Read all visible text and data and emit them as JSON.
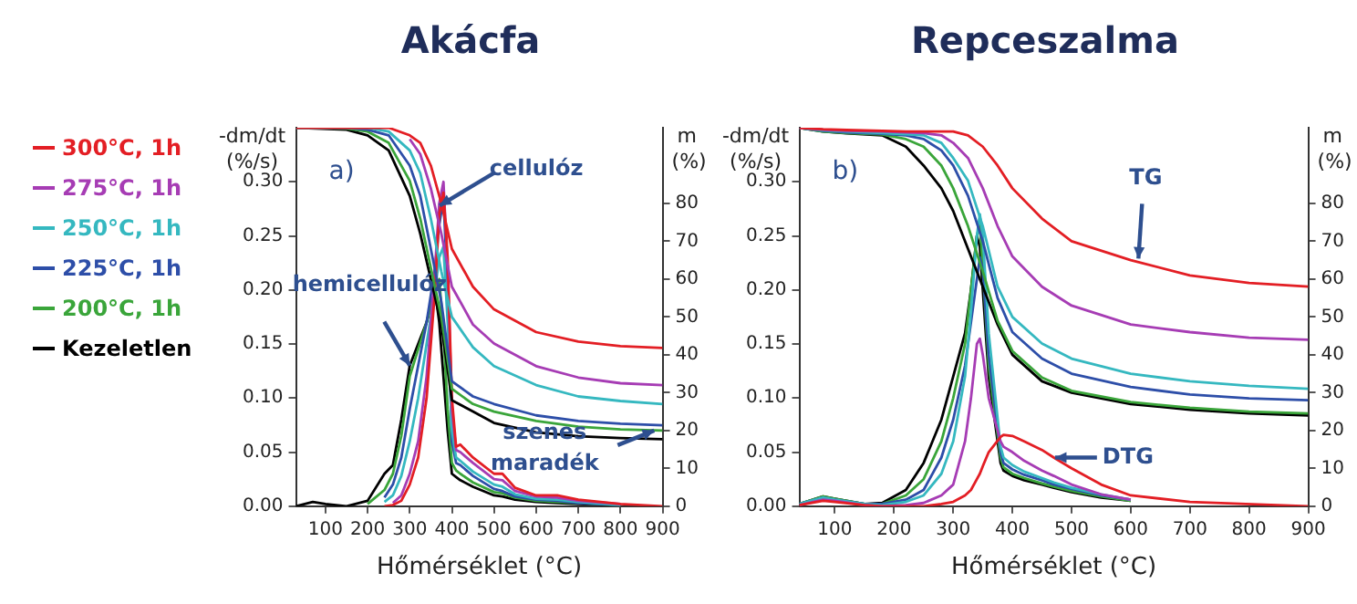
{
  "chart_data": [
    {
      "type": "line",
      "title": "Akácfa",
      "xlabel": "Hőmérséklet (°C)",
      "ylabel": "-dm/dt (%/s)",
      "y2label": "m (%)",
      "xlim": [
        30,
        900
      ],
      "xticks": [
        100,
        200,
        300,
        400,
        500,
        600,
        700,
        800,
        900
      ],
      "ylim": [
        0,
        0.35
      ],
      "yticks": [
        {
          "value": 0,
          "label": "0.00"
        },
        {
          "value": 0.05,
          "label": "0.05"
        },
        {
          "value": 0.1,
          "label": "0.10"
        },
        {
          "value": 0.15,
          "label": "0.15"
        },
        {
          "value": 0.2,
          "label": "0.20"
        },
        {
          "value": 0.25,
          "label": "0.25"
        },
        {
          "value": 0.3,
          "label": "0.30"
        }
      ],
      "y2lim": [
        0,
        100
      ],
      "y2ticks": [
        0,
        10,
        20,
        30,
        40,
        50,
        60,
        70,
        80
      ],
      "grid": false,
      "legend": "left",
      "marker": "none",
      "line_style": "solid",
      "annotations": [
        "a)",
        {
          "text": "cellulóz",
          "x": 371,
          "y": 0.278
        },
        {
          "text": "hemicellulóz",
          "x": 300,
          "y": 0.13
        },
        {
          "text": "szenes maradék",
          "x": 880,
          "y": 0.07
        }
      ],
      "series": [
        {
          "name": "300°C, 1h",
          "color": "#e31e24",
          "axis": "y2",
          "x": [
            30,
            150,
            200,
            250,
            300,
            325,
            350,
            375,
            400,
            450,
            500,
            600,
            700,
            800,
            900
          ],
          "values": [
            100,
            100,
            100,
            100,
            98,
            96,
            90,
            80,
            68,
            58,
            52,
            46,
            43.5,
            42.3,
            41.8
          ]
        },
        {
          "name": "275°C, 1h",
          "color": "#a63cb4",
          "axis": "y2",
          "x": [
            300,
            325,
            350,
            375,
            400,
            450,
            500,
            600,
            700,
            800,
            900
          ],
          "values": [
            97,
            93,
            84,
            72,
            58,
            48,
            43,
            37,
            34,
            32.5,
            32
          ]
        },
        {
          "name": "250°C, 1h",
          "color": "#35b8c0",
          "axis": "y2",
          "x": [
            30,
            150,
            200,
            250,
            300,
            325,
            350,
            375,
            400,
            450,
            500,
            600,
            700,
            800,
            900
          ],
          "values": [
            100,
            100,
            100,
            99,
            94,
            88,
            76,
            62,
            50,
            42,
            37,
            32,
            29,
            27.8,
            27
          ]
        },
        {
          "name": "225°C, 1h",
          "color": "#2d4ea8",
          "axis": "y2",
          "x": [
            30,
            150,
            200,
            250,
            300,
            325,
            350,
            375,
            400,
            450,
            500,
            600,
            700,
            800,
            900
          ],
          "values": [
            100,
            100,
            99.5,
            98,
            90,
            82,
            68,
            54,
            33,
            29,
            27,
            24,
            22.5,
            21.8,
            21.4
          ]
        },
        {
          "name": "200°C, 1h",
          "color": "#3aa53a",
          "axis": "y2",
          "x": [
            30,
            150,
            200,
            250,
            300,
            325,
            350,
            375,
            400,
            450,
            500,
            600,
            700,
            800,
            900
          ],
          "values": [
            100,
            99.8,
            99,
            96,
            86,
            76,
            63,
            50,
            31,
            27,
            25,
            22.5,
            21,
            20.3,
            20
          ]
        },
        {
          "name": "Kezeletlen",
          "color": "#000000",
          "axis": "y2",
          "x": [
            30,
            150,
            200,
            250,
            300,
            325,
            350,
            375,
            400,
            450,
            500,
            600,
            700,
            800,
            900
          ],
          "values": [
            100,
            99.5,
            98,
            94,
            82,
            72,
            60,
            48,
            28,
            25,
            22,
            19.5,
            18.5,
            18,
            17.7
          ]
        },
        {
          "color": "#e31e24",
          "x": [
            240,
            260,
            280,
            300,
            320,
            340,
            360,
            370,
            380,
            390,
            400,
            410,
            420,
            450,
            500,
            520,
            550,
            600,
            650,
            700,
            800,
            900
          ],
          "values": [
            0,
            0.001,
            0.005,
            0.02,
            0.045,
            0.1,
            0.2,
            0.27,
            0.29,
            0.23,
            0.1,
            0.055,
            0.057,
            0.045,
            0.03,
            0.03,
            0.017,
            0.01,
            0.01,
            0.006,
            0.002,
            0
          ]
        },
        {
          "color": "#a63cb4",
          "x": [
            260,
            280,
            300,
            320,
            340,
            360,
            370,
            380,
            390,
            400,
            410,
            420,
            450,
            500,
            520,
            550,
            600,
            650,
            700,
            800
          ],
          "values": [
            0.003,
            0.01,
            0.03,
            0.06,
            0.12,
            0.22,
            0.28,
            0.3,
            0.22,
            0.09,
            0.052,
            0.05,
            0.04,
            0.025,
            0.024,
            0.014,
            0.009,
            0.008,
            0.005,
            0.002
          ]
        },
        {
          "color": "#35b8c0",
          "x": [
            240,
            260,
            280,
            300,
            320,
            340,
            360,
            370,
            380,
            390,
            400,
            410,
            420,
            450,
            500,
            520,
            550,
            600,
            650,
            700,
            800
          ],
          "values": [
            0.004,
            0.01,
            0.028,
            0.06,
            0.1,
            0.15,
            0.2,
            0.23,
            0.24,
            0.17,
            0.07,
            0.045,
            0.042,
            0.032,
            0.02,
            0.018,
            0.011,
            0.007,
            0.006,
            0.004,
            0.001
          ]
        },
        {
          "color": "#2d4ea8",
          "x": [
            240,
            260,
            280,
            300,
            320,
            340,
            360,
            370,
            380,
            390,
            400,
            410,
            420,
            450,
            500,
            520,
            550,
            600,
            650,
            700,
            800
          ],
          "values": [
            0.008,
            0.02,
            0.045,
            0.09,
            0.13,
            0.17,
            0.22,
            0.26,
            0.285,
            0.2,
            0.06,
            0.04,
            0.038,
            0.028,
            0.016,
            0.014,
            0.009,
            0.006,
            0.005,
            0.003,
            0.001
          ]
        },
        {
          "color": "#3aa53a",
          "x": [
            200,
            240,
            260,
            280,
            300,
            320,
            340,
            360,
            370,
            380,
            390,
            400,
            410,
            420,
            450,
            500,
            520,
            550,
            600,
            650,
            700,
            800
          ],
          "values": [
            0.002,
            0.015,
            0.03,
            0.065,
            0.12,
            0.145,
            0.17,
            0.2,
            0.21,
            0.16,
            0.09,
            0.04,
            0.033,
            0.03,
            0.022,
            0.013,
            0.012,
            0.008,
            0.005,
            0.004,
            0.003,
            0.001
          ]
        },
        {
          "color": "#000000",
          "x": [
            30,
            70,
            100,
            150,
            200,
            240,
            260,
            280,
            300,
            320,
            340,
            360,
            370,
            380,
            390,
            400,
            410,
            420,
            450,
            500,
            520,
            550,
            600,
            650,
            700,
            800
          ],
          "values": [
            0,
            0.004,
            0.002,
            0,
            0.005,
            0.03,
            0.038,
            0.08,
            0.13,
            0.15,
            0.17,
            0.2,
            0.17,
            0.12,
            0.07,
            0.03,
            0.027,
            0.024,
            0.018,
            0.01,
            0.009,
            0.006,
            0.004,
            0.003,
            0.002,
            0.001
          ]
        }
      ]
    },
    {
      "type": "line",
      "title": "Repceszalma",
      "xlabel": "Hőmérséklet (°C)",
      "ylabel": "-dm/dt (%/s)",
      "y2label": "m (%)",
      "xlim": [
        40,
        900
      ],
      "xticks": [
        100,
        200,
        300,
        400,
        500,
        600,
        700,
        800,
        900
      ],
      "ylim": [
        0,
        0.35
      ],
      "yticks": [
        {
          "value": 0,
          "label": "0.00"
        },
        {
          "value": 0.05,
          "label": "0.05"
        },
        {
          "value": 0.1,
          "label": "0.10"
        },
        {
          "value": 0.15,
          "label": "0.15"
        },
        {
          "value": 0.2,
          "label": "0.20"
        },
        {
          "value": 0.25,
          "label": "0.25"
        },
        {
          "value": 0.3,
          "label": "0.30"
        }
      ],
      "y2lim": [
        0,
        100
      ],
      "y2ticks": [
        0,
        10,
        20,
        30,
        40,
        50,
        60,
        70,
        80
      ],
      "grid": false,
      "marker": "none",
      "line_style": "solid",
      "annotations": [
        "b)",
        {
          "text": "TG",
          "x": 613,
          "y": 0.229
        },
        {
          "text": "DTG",
          "x": 472,
          "y": 0.045
        }
      ],
      "series": [
        {
          "color": "#e31e24",
          "axis": "y2",
          "x": [
            40,
            80,
            120,
            180,
            220,
            250,
            280,
            300,
            325,
            350,
            375,
            400,
            450,
            500,
            600,
            700,
            800,
            900
          ],
          "values": [
            100,
            99.6,
            99.4,
            99.2,
            99,
            99,
            99,
            99,
            98,
            95,
            90,
            84,
            76,
            70,
            65,
            61,
            59,
            58
          ]
        },
        {
          "color": "#a63cb4",
          "axis": "y2",
          "x": [
            40,
            80,
            120,
            180,
            220,
            250,
            280,
            300,
            325,
            350,
            375,
            400,
            450,
            500,
            600,
            700,
            800,
            900
          ],
          "values": [
            100,
            99.5,
            99.2,
            99,
            98.8,
            98.6,
            98,
            96,
            92,
            84,
            74,
            66,
            58,
            53,
            48,
            46,
            44.5,
            44
          ]
        },
        {
          "color": "#35b8c0",
          "axis": "y2",
          "x": [
            40,
            80,
            120,
            180,
            220,
            250,
            280,
            300,
            325,
            350,
            375,
            400,
            450,
            500,
            600,
            700,
            800,
            900
          ],
          "values": [
            100,
            99.3,
            99,
            98.6,
            98.3,
            98,
            96,
            92,
            86,
            74,
            58,
            50,
            43,
            39,
            35,
            33,
            31.8,
            31
          ]
        },
        {
          "color": "#2d4ea8",
          "axis": "y2",
          "x": [
            40,
            80,
            120,
            180,
            220,
            250,
            280,
            300,
            325,
            350,
            375,
            400,
            450,
            500,
            600,
            700,
            800,
            900
          ],
          "values": [
            100,
            99.2,
            98.8,
            98.4,
            98,
            97,
            94,
            90,
            82,
            70,
            55,
            46,
            39,
            35,
            31.5,
            29.5,
            28.5,
            28
          ]
        },
        {
          "color": "#3aa53a",
          "axis": "y2",
          "x": [
            40,
            80,
            120,
            180,
            220,
            250,
            280,
            300,
            325,
            350,
            375,
            400,
            450,
            500,
            600,
            700,
            800,
            900
          ],
          "values": [
            100,
            99,
            98.6,
            98.2,
            97,
            95,
            90,
            84,
            74,
            62,
            49,
            41,
            34,
            30.5,
            27.5,
            26,
            25,
            24.5
          ]
        },
        {
          "color": "#000000",
          "axis": "y2",
          "x": [
            40,
            80,
            120,
            180,
            220,
            250,
            280,
            300,
            325,
            350,
            375,
            400,
            450,
            500,
            600,
            700,
            800,
            900
          ],
          "values": [
            100,
            99,
            98.5,
            98,
            95,
            90,
            84,
            78,
            68,
            58,
            48,
            40,
            33,
            30,
            27,
            25.5,
            24.5,
            24
          ]
        },
        {
          "color": "#e31e24",
          "x": [
            40,
            80,
            100,
            150,
            180,
            220,
            250,
            280,
            300,
            320,
            330,
            340,
            345,
            350,
            360,
            380,
            385,
            400,
            420,
            450,
            470,
            500,
            550,
            600,
            700,
            900
          ],
          "values": [
            0.001,
            0.005,
            0.004,
            0.001,
            0,
            0,
            0,
            0.002,
            0.004,
            0.01,
            0.015,
            0.025,
            0.03,
            0.037,
            0.05,
            0.064,
            0.066,
            0.065,
            0.06,
            0.052,
            0.045,
            0.035,
            0.02,
            0.01,
            0.004,
            0
          ]
        },
        {
          "color": "#a63cb4",
          "x": [
            40,
            80,
            100,
            150,
            180,
            220,
            250,
            280,
            300,
            320,
            330,
            340,
            345,
            350,
            360,
            380,
            385,
            400,
            420,
            450,
            470,
            500,
            550,
            600
          ],
          "values": [
            0.001,
            0.006,
            0.005,
            0.001,
            0,
            0.001,
            0.003,
            0.01,
            0.02,
            0.06,
            0.1,
            0.15,
            0.155,
            0.14,
            0.1,
            0.06,
            0.055,
            0.05,
            0.042,
            0.033,
            0.028,
            0.02,
            0.011,
            0.006
          ]
        },
        {
          "color": "#35b8c0",
          "x": [
            40,
            80,
            100,
            150,
            180,
            220,
            250,
            280,
            300,
            320,
            330,
            340,
            345,
            350,
            360,
            380,
            385,
            400,
            420,
            450,
            470,
            500,
            550,
            600
          ],
          "values": [
            0.002,
            0.008,
            0.006,
            0.002,
            0.001,
            0.004,
            0.01,
            0.03,
            0.06,
            0.12,
            0.18,
            0.25,
            0.27,
            0.25,
            0.16,
            0.055,
            0.045,
            0.038,
            0.032,
            0.026,
            0.022,
            0.017,
            0.011,
            0.006
          ]
        },
        {
          "color": "#2d4ea8",
          "x": [
            40,
            80,
            100,
            150,
            180,
            220,
            250,
            280,
            300,
            320,
            330,
            340,
            345,
            350,
            360,
            380,
            385,
            400,
            420,
            450,
            470,
            500,
            550,
            600
          ],
          "values": [
            0.002,
            0.008,
            0.006,
            0.002,
            0.002,
            0.006,
            0.015,
            0.045,
            0.08,
            0.13,
            0.17,
            0.21,
            0.23,
            0.22,
            0.14,
            0.05,
            0.04,
            0.034,
            0.029,
            0.024,
            0.02,
            0.016,
            0.01,
            0.006
          ]
        },
        {
          "color": "#3aa53a",
          "x": [
            40,
            80,
            100,
            150,
            180,
            220,
            250,
            280,
            300,
            320,
            330,
            340,
            345,
            350,
            360,
            380,
            385,
            400,
            420,
            450,
            470,
            500,
            550,
            600
          ],
          "values": [
            0.002,
            0.009,
            0.007,
            0.002,
            0.002,
            0.01,
            0.025,
            0.06,
            0.1,
            0.15,
            0.2,
            0.25,
            0.26,
            0.22,
            0.13,
            0.045,
            0.036,
            0.03,
            0.026,
            0.021,
            0.018,
            0.014,
            0.009,
            0.005
          ]
        },
        {
          "color": "#000000",
          "x": [
            40,
            80,
            100,
            150,
            180,
            220,
            250,
            280,
            300,
            320,
            330,
            340,
            345,
            350,
            360,
            380,
            385,
            400,
            420,
            450,
            470,
            500,
            550,
            600
          ],
          "values": [
            0.002,
            0.009,
            0.007,
            0.002,
            0.003,
            0.015,
            0.04,
            0.08,
            0.12,
            0.16,
            0.2,
            0.25,
            0.24,
            0.2,
            0.12,
            0.04,
            0.033,
            0.028,
            0.024,
            0.02,
            0.017,
            0.013,
            0.008,
            0.005
          ]
        }
      ]
    }
  ]
}
